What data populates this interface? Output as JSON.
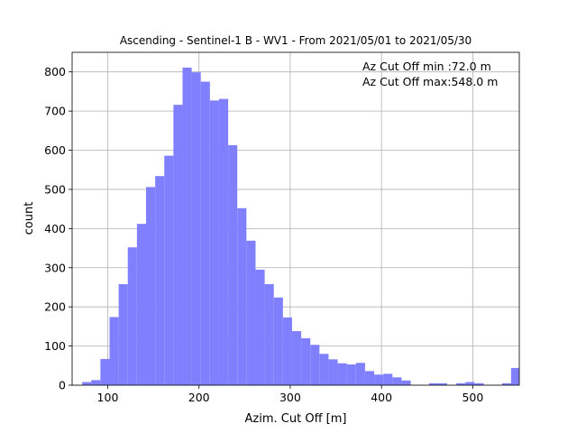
{
  "chart_data": {
    "type": "bar",
    "title": "Ascending - Sentinel-1 B - WV1 - From 2021/05/01 to 2021/05/30",
    "xlabel": "Azim. Cut Off [m]",
    "ylabel": "count",
    "xlim": [
      61,
      551
    ],
    "ylim": [
      0,
      850
    ],
    "xticks": [
      100,
      200,
      300,
      400,
      500
    ],
    "yticks": [
      0,
      100,
      200,
      300,
      400,
      500,
      600,
      700,
      800
    ],
    "grid": true,
    "bar_color": "#8080ff",
    "bin_width": 10,
    "bin_starts": [
      72,
      82,
      92,
      102,
      112,
      122,
      132,
      142,
      152,
      162,
      172,
      182,
      192,
      202,
      212,
      222,
      232,
      242,
      252,
      262,
      272,
      282,
      292,
      302,
      312,
      322,
      332,
      342,
      352,
      362,
      372,
      382,
      392,
      402,
      412,
      422,
      432,
      442,
      452,
      462,
      472,
      482,
      492,
      502,
      512,
      522,
      532,
      542
    ],
    "values": [
      8,
      13,
      67,
      174,
      258,
      352,
      412,
      506,
      534,
      586,
      716,
      811,
      799,
      775,
      727,
      731,
      613,
      452,
      369,
      295,
      258,
      224,
      173,
      138,
      120,
      103,
      80,
      66,
      56,
      53,
      57,
      36,
      27,
      29,
      20,
      12,
      0,
      0,
      5,
      5,
      0,
      5,
      8,
      5,
      0,
      0,
      5,
      44
    ],
    "annotations": [
      "Az Cut Off min :72.0 m",
      "Az Cut Off max:548.0 m"
    ]
  }
}
